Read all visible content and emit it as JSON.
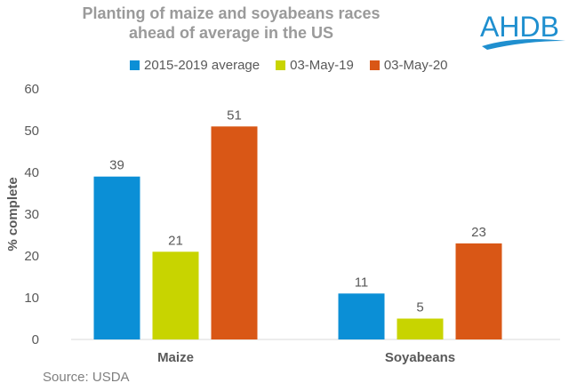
{
  "header": {
    "title_line1": "Planting of maize and soyabeans races",
    "title_line2": "ahead of average in the US",
    "logo_text": "AHDB"
  },
  "footer": {
    "source": "Source: USDA"
  },
  "colors": {
    "series_avg": "#0b8fd6",
    "series_2019": "#c8d400",
    "series_2020": "#d95716",
    "axis_text": "#595959",
    "grid": "#d9d9d9",
    "logo": "#1f8fcf"
  },
  "chart_data": {
    "type": "bar",
    "title": "Planting of maize and soyabeans races ahead of average in the US",
    "xlabel": "",
    "ylabel": "% complete",
    "ylim": [
      0,
      60
    ],
    "yticks": [
      0,
      10,
      20,
      30,
      40,
      50,
      60
    ],
    "grid": true,
    "legend_position": "top",
    "categories": [
      "Maize",
      "Soyabeans"
    ],
    "series": [
      {
        "name": "2015-2019 average",
        "values": [
          39,
          11
        ]
      },
      {
        "name": "03-May-19",
        "values": [
          21,
          5
        ]
      },
      {
        "name": "03-May-20",
        "values": [
          51,
          23
        ]
      }
    ]
  }
}
